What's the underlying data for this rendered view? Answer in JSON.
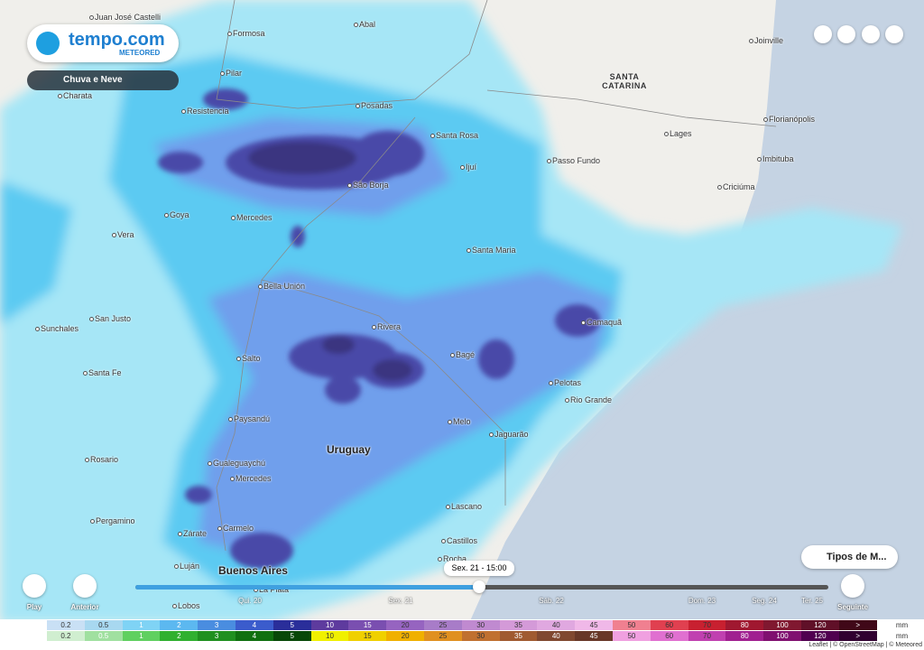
{
  "header": {
    "logo": "tempo.com",
    "logo_sub": "METEORED"
  },
  "layer_button": "Chuva e Neve",
  "layers_button": "Tipos de M...",
  "places": [
    {
      "label": "Juan José Castelli"
    },
    {
      "label": "Formosa"
    },
    {
      "label": "Abal"
    },
    {
      "label": "Joinville"
    },
    {
      "label": "Pilar"
    },
    {
      "label": "Charata"
    },
    {
      "label": "Resistencia"
    },
    {
      "label": "Posadas"
    },
    {
      "label": "SANTA CATARINA"
    },
    {
      "label": "Florianópolis"
    },
    {
      "label": "Santa Rosa"
    },
    {
      "label": "Lages"
    },
    {
      "label": "Ijuí"
    },
    {
      "label": "Passo Fundo"
    },
    {
      "label": "Imbituba"
    },
    {
      "label": "São Borja"
    },
    {
      "label": "Criciúma"
    },
    {
      "label": "Goya"
    },
    {
      "label": "Mercedes"
    },
    {
      "label": "Vera"
    },
    {
      "label": "Santa Maria"
    },
    {
      "label": "Bella Unión"
    },
    {
      "label": "Sunchales"
    },
    {
      "label": "San Justo"
    },
    {
      "label": "Camaquã"
    },
    {
      "label": "Rivera"
    },
    {
      "label": "Bagé"
    },
    {
      "label": "Salto"
    },
    {
      "label": "Santa Fe"
    },
    {
      "label": "Pelotas"
    },
    {
      "label": "Rio Grande"
    },
    {
      "label": "Paysandú"
    },
    {
      "label": "Melo"
    },
    {
      "label": "Jaguarão"
    },
    {
      "label": "Uruguay"
    },
    {
      "label": "Rosario"
    },
    {
      "label": "Gualeguaychú"
    },
    {
      "label": "Mercedes"
    },
    {
      "label": "Lascano"
    },
    {
      "label": "Pergamino"
    },
    {
      "label": "Carmelo"
    },
    {
      "label": "Zárate"
    },
    {
      "label": "Castillos"
    },
    {
      "label": "Rocha"
    },
    {
      "label": "Luján"
    },
    {
      "label": "Buenos Aires"
    },
    {
      "label": "La Plata"
    },
    {
      "label": "Lobos"
    }
  ],
  "timeline": {
    "current": "Sex. 21 - 15:00",
    "days": [
      "Qui. 20",
      "Sex. 21",
      "Sáb. 22",
      "Dom. 23",
      "Seg. 24",
      "Ter. 25"
    ],
    "play": "Play",
    "previous": "Anterior",
    "next": "Seguinte"
  },
  "legend": {
    "values": [
      "0.2",
      "0.5",
      "1",
      "2",
      "3",
      "4",
      "5",
      "10",
      "15",
      "20",
      "25",
      "30",
      "35",
      "40",
      "45",
      "50",
      "60",
      "70",
      "80",
      "100",
      "120",
      ">"
    ],
    "unit": "mm",
    "rain_colors": [
      "#c9e0f5",
      "#a8d8f0",
      "#7fd3f5",
      "#5cb8f0",
      "#4a8de0",
      "#3b5ccc",
      "#2a2e9a",
      "#5e3b9e",
      "#7a4fb0",
      "#9664c0",
      "#a87cc8",
      "#c08ad0",
      "#d49ad8",
      "#e0a8e0",
      "#f0b8e8",
      "#f08090",
      "#e04050",
      "#c82030",
      "#a01830",
      "#801830",
      "#601028",
      "#400818"
    ],
    "snow_colors": [
      "#d0eed0",
      "#a0e0a0",
      "#60d060",
      "#30b030",
      "#209020",
      "#107010",
      "#084808",
      "#f0f000",
      "#f0d000",
      "#f0b000",
      "#e09020",
      "#c07030",
      "#a05a30",
      "#804830",
      "#683828",
      "#f0a0e0",
      "#e070d0",
      "#c040b0",
      "#a02090",
      "#801070",
      "#500050",
      "#300030"
    ]
  },
  "attribution": "Leaflet | © OpenStreetMap | © Meteored"
}
